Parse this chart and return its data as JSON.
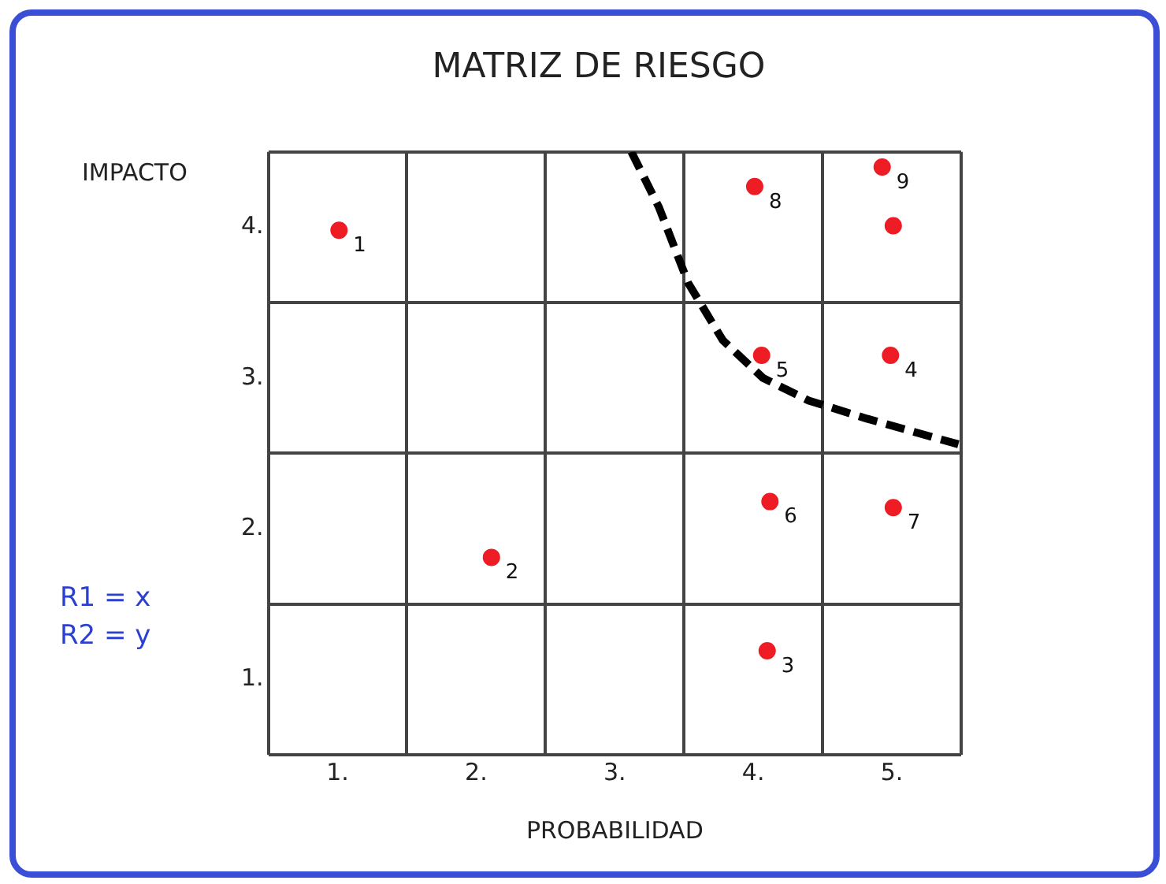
{
  "chart_data": {
    "type": "scatter",
    "title": "MATRIZ DE RIESGO",
    "xlabel": "PROBABILIDAD",
    "ylabel": "IMPACTO",
    "annotations": [
      "R1 = x",
      "R2 = y",
      {
        "text": "1",
        "x": 1.01,
        "y": 3.98
      },
      {
        "text": "2",
        "x": 2.11,
        "y": 1.81
      },
      {
        "text": "3",
        "x": 4.1,
        "y": 1.19
      },
      {
        "text": "4",
        "x": 4.99,
        "y": 3.15
      },
      {
        "text": "5",
        "x": 4.06,
        "y": 3.15
      },
      {
        "text": "6",
        "x": 4.12,
        "y": 2.18
      },
      {
        "text": "7",
        "x": 5.01,
        "y": 2.14
      },
      {
        "text": "8",
        "x": 4.01,
        "y": 4.27
      },
      {
        "text": "9",
        "x": 4.93,
        "y": 4.4
      }
    ],
    "xlim": [
      0.5,
      5.5
    ],
    "ylim": [
      0.5,
      4.5
    ],
    "xticks": [
      {
        "value": 0.5,
        "label": null
      },
      {
        "value": 1,
        "label": "1."
      },
      {
        "value": 1.5,
        "label": null
      },
      {
        "value": 2,
        "label": "2."
      },
      {
        "value": 2.5,
        "label": null
      },
      {
        "value": 3,
        "label": "3."
      },
      {
        "value": 3.5,
        "label": null
      },
      {
        "value": 4,
        "label": "4."
      },
      {
        "value": 4.5,
        "label": null
      },
      {
        "value": 5,
        "label": "5."
      },
      {
        "value": 5.5,
        "label": null
      }
    ],
    "yticks": [
      {
        "value": 0.5,
        "label": null
      },
      {
        "value": 1,
        "label": "1."
      },
      {
        "value": 1.5,
        "label": null
      },
      {
        "value": 2,
        "label": "2."
      },
      {
        "value": 2.5,
        "label": null
      },
      {
        "value": 3,
        "label": "3."
      },
      {
        "value": 3.5,
        "label": null
      },
      {
        "value": 4,
        "label": "4."
      },
      {
        "value": 4.5,
        "label": null
      }
    ],
    "grid": true,
    "legend": false,
    "series": [
      {
        "color": "#ee1c24",
        "marker": "circle",
        "x": [
          1.01,
          2.11,
          4.1,
          4.99,
          4.06,
          4.12,
          5.01,
          4.01,
          4.93,
          5.01
        ],
        "values": [
          3.98,
          1.81,
          1.19,
          3.15,
          3.15,
          2.18,
          2.14,
          4.27,
          4.4,
          4.01
        ]
      },
      {
        "type": "line",
        "color": "#000000",
        "marker": "none",
        "line_style": "dashed",
        "x": [
          3.12,
          3.32,
          3.53,
          3.78,
          4.07,
          4.4,
          4.82,
          5.48
        ],
        "values": [
          4.5,
          4.13,
          3.63,
          3.25,
          3.0,
          2.85,
          2.73,
          2.56
        ]
      }
    ]
  }
}
